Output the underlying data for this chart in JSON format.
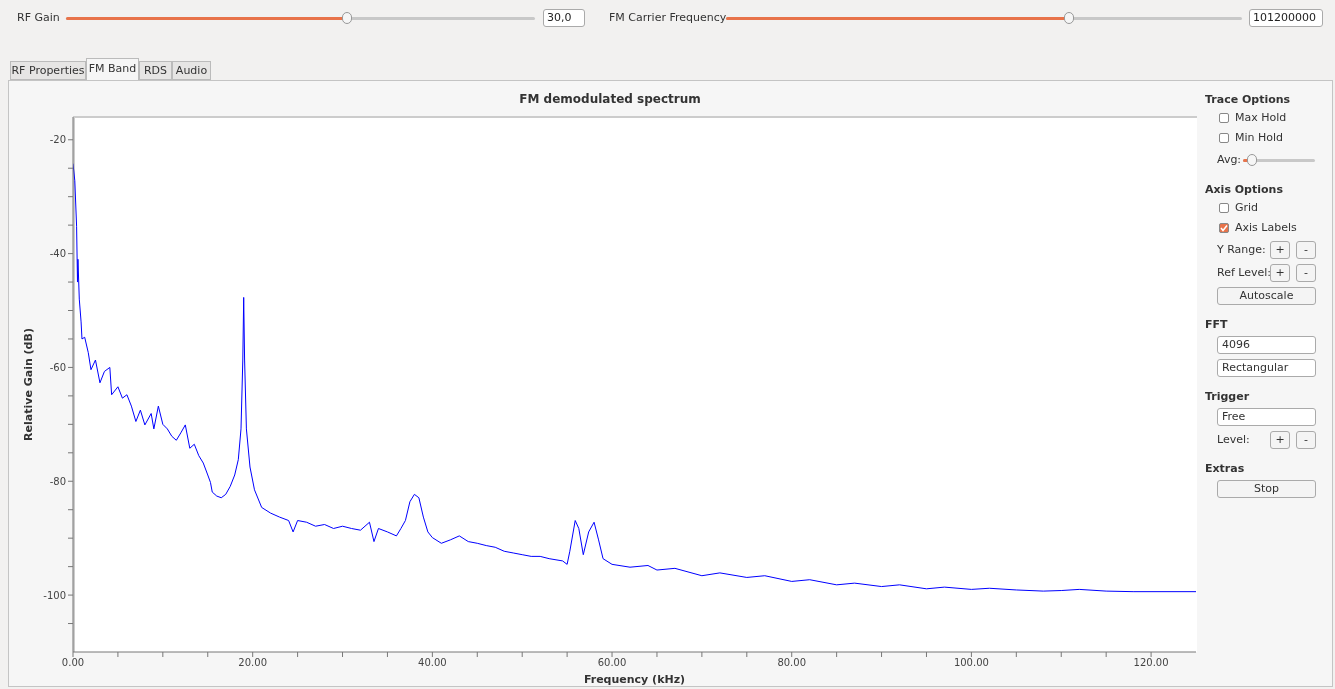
{
  "chart_data": [
    {
      "type": "other",
      "annotations": [
        "RF Gain",
        "30,0",
        "FM Carrier Frequency",
        "101200000",
        "RF Properties",
        "FM Band",
        "RDS",
        "Audio"
      ]
    },
    {
      "type": "line",
      "title": "FM demodulated spectrum",
      "xlabel": "Frequency (kHz)",
      "ylabel": "Relative Gain (dB)",
      "marker": "none",
      "x": [
        0,
        0.2,
        0.4,
        0.5,
        0.55,
        0.7,
        0.9,
        1.0,
        1.3,
        1.7,
        2.0,
        2.5,
        3.0,
        3.5,
        4.1,
        4.3,
        5.0,
        5.5,
        6.0,
        6.5,
        7.0,
        7.5,
        8.0,
        8.7,
        9.0,
        9.5,
        10.0,
        10.5,
        11.0,
        11.5,
        12.0,
        12.5,
        13.0,
        13.5,
        14.0,
        14.5,
        15.0,
        15.3,
        15.5,
        16.0,
        16.5,
        17.0,
        17.5,
        18.0,
        18.4,
        18.7,
        18.9,
        19.0,
        19.1,
        19.3,
        19.7,
        20.2,
        21,
        22,
        23,
        24,
        24.5,
        25,
        26,
        27,
        28,
        29,
        30,
        31,
        32,
        33,
        33.5,
        34,
        35,
        36,
        36.5,
        37,
        37.5,
        38,
        38.5,
        39,
        39.5,
        40,
        41,
        42,
        43,
        44,
        45,
        46,
        47,
        48,
        49,
        50,
        51,
        52,
        53,
        54.5,
        55,
        55.3,
        55.9,
        56.3,
        56.8,
        57.4,
        58,
        58.5,
        59,
        60,
        62,
        64,
        65,
        67,
        70,
        72,
        75,
        77,
        80,
        82,
        85,
        87,
        90,
        92,
        95,
        97,
        100,
        102,
        105,
        108,
        110,
        112,
        115,
        118,
        125
      ],
      "series": [
        {
          "color": "#0000ff",
          "values": [
            -24.2,
            -27.2,
            -35.2,
            -45,
            -41,
            -48,
            -52,
            -55,
            -54.7,
            -57.4,
            -60.4,
            -58.7,
            -62.7,
            -60.7,
            -60,
            -64.8,
            -63.4,
            -65.4,
            -64.8,
            -66.8,
            -69.5,
            -67.5,
            -70.1,
            -68.1,
            -70.8,
            -66.8,
            -70,
            -70.8,
            -72.1,
            -72.8,
            -71.5,
            -70.1,
            -74.2,
            -73.5,
            -75.5,
            -76.8,
            -78.9,
            -80.2,
            -81.9,
            -82.6,
            -82.9,
            -82.3,
            -80.9,
            -78.9,
            -76.2,
            -70.8,
            -58.7,
            -47.7,
            -58.7,
            -70.8,
            -77.5,
            -81.5,
            -84.6,
            -85.6,
            -86.3,
            -86.9,
            -88.9,
            -86.9,
            -87.2,
            -87.9,
            -87.6,
            -88.3,
            -87.9,
            -88.3,
            -88.6,
            -87.2,
            -90.6,
            -88.3,
            -88.9,
            -89.6,
            -88.3,
            -86.9,
            -83.6,
            -82.3,
            -82.9,
            -86.3,
            -88.9,
            -89.9,
            -90.9,
            -90.3,
            -89.6,
            -90.6,
            -90.9,
            -91.3,
            -91.6,
            -92.3,
            -92.6,
            -92.9,
            -93.2,
            -93.2,
            -93.6,
            -94,
            -94.6,
            -92.3,
            -86.9,
            -88.3,
            -92.9,
            -88.9,
            -87.2,
            -90.3,
            -93.6,
            -94.6,
            -95.1,
            -94.8,
            -95.6,
            -95.3,
            -96.6,
            -96.1,
            -96.9,
            -96.6,
            -97.6,
            -97.3,
            -98.2,
            -97.9,
            -98.5,
            -98.2,
            -98.9,
            -98.6,
            -99,
            -98.8,
            -99.1,
            -99.3,
            -99.2,
            -99,
            -99.3,
            -99.4,
            -99.4
          ]
        }
      ],
      "xlim": [
        0,
        125
      ],
      "xticks": [
        {
          "value": 0,
          "label": "0.00"
        },
        {
          "value": 5,
          "label": null
        },
        {
          "value": 10,
          "label": null
        },
        {
          "value": 15,
          "label": null
        },
        {
          "value": 20,
          "label": "20.00"
        },
        {
          "value": 25,
          "label": null
        },
        {
          "value": 30,
          "label": null
        },
        {
          "value": 35,
          "label": null
        },
        {
          "value": 40,
          "label": "40.00"
        },
        {
          "value": 45,
          "label": null
        },
        {
          "value": 50,
          "label": null
        },
        {
          "value": 55,
          "label": null
        },
        {
          "value": 60,
          "label": "60.00"
        },
        {
          "value": 65,
          "label": null
        },
        {
          "value": 70,
          "label": null
        },
        {
          "value": 75,
          "label": null
        },
        {
          "value": 80,
          "label": "80.00"
        },
        {
          "value": 85,
          "label": null
        },
        {
          "value": 90,
          "label": null
        },
        {
          "value": 95,
          "label": null
        },
        {
          "value": 100,
          "label": "100.00"
        },
        {
          "value": 105,
          "label": null
        },
        {
          "value": 110,
          "label": null
        },
        {
          "value": 115,
          "label": null
        },
        {
          "value": 120,
          "label": "120.00"
        }
      ],
      "ylim": [
        -110,
        -16
      ],
      "yticks": [
        {
          "value": -105,
          "label": null
        },
        -100,
        {
          "value": -95,
          "label": null
        },
        {
          "value": -90,
          "label": null
        },
        {
          "value": -85,
          "label": null
        },
        -80,
        {
          "value": -75,
          "label": null
        },
        {
          "value": -70,
          "label": null
        },
        {
          "value": -65,
          "label": null
        },
        -60,
        {
          "value": -55,
          "label": null
        },
        {
          "value": -50,
          "label": null
        },
        {
          "value": -45,
          "label": null
        },
        -40,
        {
          "value": -35,
          "label": null
        },
        {
          "value": -30,
          "label": null
        },
        {
          "value": -25,
          "label": null
        },
        -20
      ]
    },
    {
      "type": "other",
      "annotations": [
        "Trace Options",
        "Max Hold",
        "Min Hold",
        "Avg:",
        "Axis Options",
        "Grid",
        "Axis Labels",
        "Y Range:",
        "+",
        "-",
        "Ref Level:",
        "+",
        "-",
        "Autoscale",
        "FFT",
        "4096",
        "Rectangular",
        "Trigger",
        "Free",
        "Level:",
        "+",
        "-",
        "Extras",
        "Stop"
      ]
    }
  ]
}
